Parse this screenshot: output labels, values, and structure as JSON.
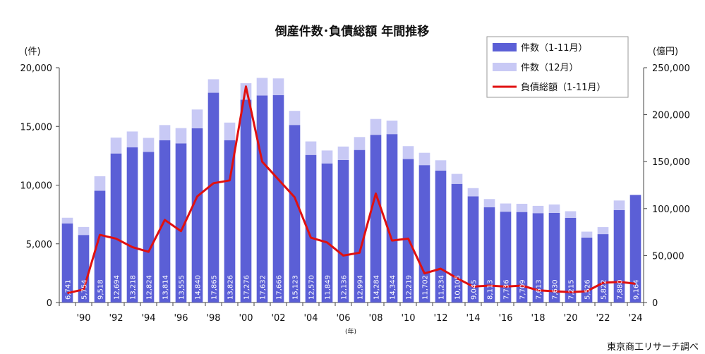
{
  "chart_data": {
    "type": "bar",
    "title": "倒産件数･負債総額 年間推移",
    "left_unit": "(件)",
    "right_unit": "(億円)",
    "xlabel": "(年)",
    "source": "東京商工リサーチ調べ",
    "legend_position": "top-right",
    "grid": false,
    "left_axis": {
      "min": 0,
      "max": 20000,
      "ticks": [
        "0",
        "5,000",
        "10,000",
        "15,000",
        "20,000"
      ],
      "tick_values": [
        0,
        5000,
        10000,
        15000,
        20000
      ]
    },
    "right_axis": {
      "min": 0,
      "max": 250000,
      "ticks": [
        "0",
        "50,000",
        "100,000",
        "150,000",
        "200,000",
        "250,000"
      ],
      "tick_values": [
        0,
        50000,
        100000,
        150000,
        200000,
        250000
      ]
    },
    "x_tick_labels": [
      "'90",
      "'92",
      "'94",
      "'96",
      "'98",
      "'00",
      "'02",
      "'04",
      "'06",
      "'08",
      "'10",
      "'12",
      "'14",
      "'16",
      "'18",
      "'20",
      "'22",
      "'24"
    ],
    "years": [
      1989,
      1990,
      1991,
      1992,
      1993,
      1994,
      1995,
      1996,
      1997,
      1998,
      1999,
      2000,
      2001,
      2002,
      2003,
      2004,
      2005,
      2006,
      2007,
      2008,
      2009,
      2010,
      2011,
      2012,
      2013,
      2014,
      2015,
      2016,
      2017,
      2018,
      2019,
      2020,
      2021,
      2022,
      2023,
      2024
    ],
    "series": [
      {
        "name": "件数（1-11月）",
        "color": "#5b5fd6",
        "values": [
          6741,
          5754,
          9518,
          12694,
          13218,
          12824,
          13814,
          13555,
          14840,
          17865,
          13826,
          17276,
          17632,
          17666,
          15123,
          12570,
          11849,
          12136,
          12994,
          14284,
          14344,
          12219,
          11702,
          11234,
          10105,
          9045,
          8113,
          7736,
          7709,
          7613,
          7630,
          7215,
          5526,
          5822,
          7880,
          9164
        ],
        "labels": [
          "6,741",
          "5,754",
          "9,518",
          "12,694",
          "13,218",
          "12,824",
          "13,814",
          "13,555",
          "14,840",
          "17,865",
          "13,826",
          "17,276",
          "17,632",
          "17,666",
          "15,123",
          "12,570",
          "11,849",
          "12,136",
          "12,994",
          "14,284",
          "14,344",
          "12,219",
          "11,702",
          "11,234",
          "10,105",
          "9,045",
          "8,113",
          "7,736",
          "7,709",
          "7,613",
          "7,630",
          "7,215",
          "5,526",
          "5,822",
          "7,880",
          "9,164"
        ]
      },
      {
        "name": "件数（12月）",
        "color": "#c8c9f5",
        "values": [
          480,
          680,
          1240,
          1350,
          1350,
          1200,
          1300,
          1300,
          1600,
          1150,
          1500,
          1400,
          1500,
          1420,
          1200,
          1150,
          1100,
          1150,
          1100,
          1350,
          1150,
          1100,
          1050,
          880,
          850,
          700,
          700,
          700,
          700,
          620,
          720,
          560,
          510,
          600,
          810,
          0
        ]
      },
      {
        "name": "負債総額（1-11月）",
        "color": "#e01010",
        "type": "line",
        "axis": "right",
        "values": [
          10000,
          14000,
          72000,
          68000,
          59000,
          54000,
          88000,
          76000,
          113000,
          127000,
          130000,
          230000,
          150000,
          131000,
          112000,
          69000,
          64000,
          50000,
          53000,
          116000,
          66000,
          68000,
          31000,
          36000,
          26000,
          17000,
          18000,
          17000,
          18000,
          13000,
          12000,
          11000,
          12000,
          21000,
          22000,
          20000
        ]
      }
    ]
  }
}
